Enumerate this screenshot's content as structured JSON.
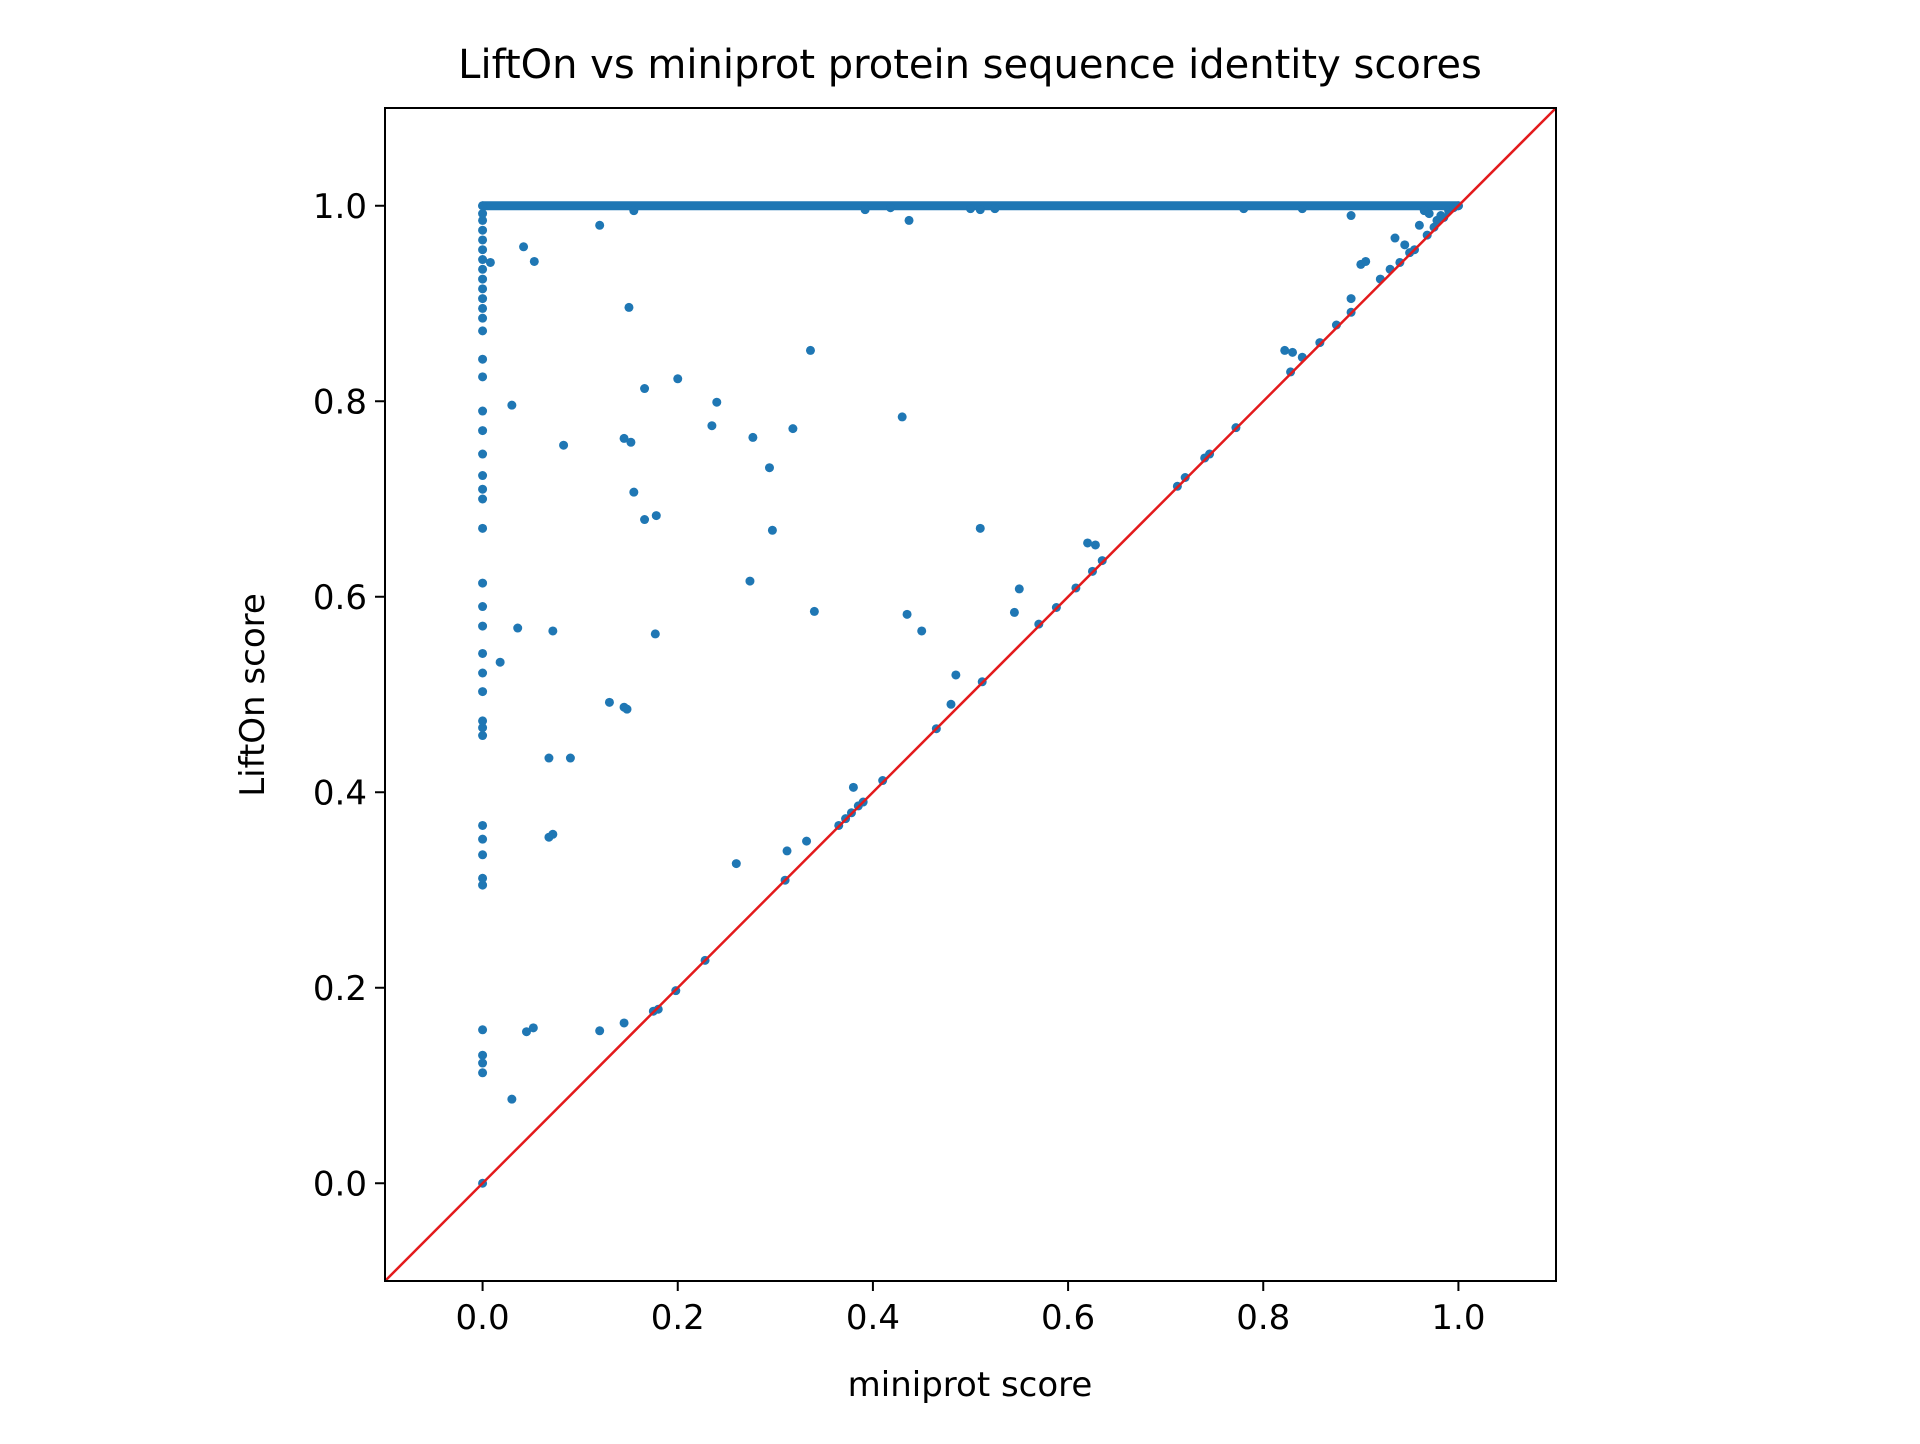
{
  "chart_data": {
    "type": "scatter",
    "title": "LiftOn vs miniprot protein sequence identity scores",
    "xlabel": "miniprot score",
    "ylabel": "LiftOn score",
    "xlim": [
      -0.1,
      1.1
    ],
    "ylim": [
      -0.1,
      1.1
    ],
    "xticks": [
      {
        "value": 0.0,
        "label": "0.0"
      },
      {
        "value": 0.2,
        "label": "0.2"
      },
      {
        "value": 0.4,
        "label": "0.4"
      },
      {
        "value": 0.6,
        "label": "0.6"
      },
      {
        "value": 0.8,
        "label": "0.8"
      },
      {
        "value": 1.0,
        "label": "1.0"
      }
    ],
    "yticks": [
      {
        "value": 0.0,
        "label": "0.0"
      },
      {
        "value": 0.2,
        "label": "0.2"
      },
      {
        "value": 0.4,
        "label": "0.4"
      },
      {
        "value": 0.6,
        "label": "0.6"
      },
      {
        "value": 0.8,
        "label": "0.8"
      },
      {
        "value": 1.0,
        "label": "1.0"
      }
    ],
    "grid": false,
    "legend": "none",
    "colors": {
      "points": "#1f77b4",
      "reference_line": "#e31a1c",
      "axes": "#000000"
    },
    "reference_line": {
      "label": "",
      "x": [
        -0.1,
        1.1
      ],
      "y": [
        -0.1,
        1.1
      ]
    },
    "series": [
      {
        "name": "",
        "points": [
          [
            0.0,
            0.0
          ],
          [
            0.0,
            0.113
          ],
          [
            0.0,
            0.123
          ],
          [
            0.0,
            0.131
          ],
          [
            0.0,
            0.157
          ],
          [
            0.0,
            0.305
          ],
          [
            0.0,
            0.312
          ],
          [
            0.0,
            0.336
          ],
          [
            0.0,
            0.352
          ],
          [
            0.0,
            0.366
          ],
          [
            0.0,
            0.458
          ],
          [
            0.0,
            0.466
          ],
          [
            0.0,
            0.473
          ],
          [
            0.0,
            0.503
          ],
          [
            0.0,
            0.522
          ],
          [
            0.0,
            0.542
          ],
          [
            0.0,
            0.57
          ],
          [
            0.0,
            0.59
          ],
          [
            0.0,
            0.614
          ],
          [
            0.0,
            0.67
          ],
          [
            0.0,
            0.7
          ],
          [
            0.0,
            0.71
          ],
          [
            0.0,
            0.724
          ],
          [
            0.0,
            0.746
          ],
          [
            0.0,
            0.77
          ],
          [
            0.0,
            0.79
          ],
          [
            0.0,
            0.825
          ],
          [
            0.0,
            0.843
          ],
          [
            0.0,
            0.872
          ],
          [
            0.0,
            0.885
          ],
          [
            0.0,
            0.895
          ],
          [
            0.0,
            0.905
          ],
          [
            0.0,
            0.915
          ],
          [
            0.0,
            0.925
          ],
          [
            0.0,
            0.935
          ],
          [
            0.0,
            0.945
          ],
          [
            0.0,
            0.955
          ],
          [
            0.0,
            0.965
          ],
          [
            0.0,
            0.975
          ],
          [
            0.0,
            0.985
          ],
          [
            0.0,
            0.992
          ],
          [
            0.0,
            1.0
          ],
          [
            0.008,
            0.942
          ],
          [
            0.042,
            0.958
          ],
          [
            0.053,
            0.943
          ],
          [
            0.12,
            0.98
          ],
          [
            0.155,
            0.995
          ],
          [
            0.392,
            0.996
          ],
          [
            0.418,
            0.998
          ],
          [
            0.437,
            0.985
          ],
          [
            0.5,
            0.997
          ],
          [
            0.51,
            0.996
          ],
          [
            0.525,
            0.997
          ],
          [
            0.78,
            0.997
          ],
          [
            0.84,
            0.997
          ],
          [
            0.89,
            0.99
          ],
          [
            0.15,
            0.896
          ],
          [
            0.336,
            0.852
          ],
          [
            0.2,
            0.823
          ],
          [
            0.166,
            0.813
          ],
          [
            0.03,
            0.796
          ],
          [
            0.24,
            0.799
          ],
          [
            0.43,
            0.784
          ],
          [
            0.235,
            0.775
          ],
          [
            0.318,
            0.772
          ],
          [
            0.277,
            0.763
          ],
          [
            0.145,
            0.762
          ],
          [
            0.152,
            0.758
          ],
          [
            0.083,
            0.755
          ],
          [
            0.294,
            0.732
          ],
          [
            0.155,
            0.707
          ],
          [
            0.178,
            0.683
          ],
          [
            0.166,
            0.679
          ],
          [
            0.297,
            0.668
          ],
          [
            0.51,
            0.67
          ],
          [
            0.274,
            0.616
          ],
          [
            0.34,
            0.585
          ],
          [
            0.435,
            0.582
          ],
          [
            0.036,
            0.568
          ],
          [
            0.072,
            0.565
          ],
          [
            0.177,
            0.562
          ],
          [
            0.45,
            0.565
          ],
          [
            0.018,
            0.533
          ],
          [
            0.13,
            0.492
          ],
          [
            0.145,
            0.487
          ],
          [
            0.148,
            0.485
          ],
          [
            0.068,
            0.435
          ],
          [
            0.09,
            0.435
          ],
          [
            0.068,
            0.354
          ],
          [
            0.072,
            0.357
          ],
          [
            0.26,
            0.327
          ],
          [
            0.312,
            0.34
          ],
          [
            0.332,
            0.35
          ],
          [
            0.045,
            0.155
          ],
          [
            0.052,
            0.159
          ],
          [
            0.12,
            0.156
          ],
          [
            0.145,
            0.164
          ],
          [
            0.03,
            0.086
          ],
          [
            0.485,
            0.52
          ],
          [
            0.55,
            0.608
          ],
          [
            0.545,
            0.584
          ],
          [
            0.62,
            0.655
          ],
          [
            0.628,
            0.653
          ],
          [
            0.38,
            0.405
          ],
          [
            0.48,
            0.49
          ],
          [
            0.175,
            0.176
          ],
          [
            0.18,
            0.178
          ],
          [
            0.198,
            0.197
          ],
          [
            0.228,
            0.228
          ],
          [
            0.31,
            0.31
          ],
          [
            0.365,
            0.366
          ],
          [
            0.372,
            0.373
          ],
          [
            0.378,
            0.379
          ],
          [
            0.385,
            0.386
          ],
          [
            0.39,
            0.39
          ],
          [
            0.41,
            0.412
          ],
          [
            0.465,
            0.465
          ],
          [
            0.512,
            0.513
          ],
          [
            0.57,
            0.572
          ],
          [
            0.588,
            0.589
          ],
          [
            0.608,
            0.609
          ],
          [
            0.625,
            0.626
          ],
          [
            0.635,
            0.637
          ],
          [
            0.712,
            0.713
          ],
          [
            0.72,
            0.722
          ],
          [
            0.74,
            0.742
          ],
          [
            0.745,
            0.746
          ],
          [
            0.772,
            0.773
          ],
          [
            0.822,
            0.852
          ],
          [
            0.83,
            0.85
          ],
          [
            0.828,
            0.83
          ],
          [
            0.84,
            0.845
          ],
          [
            0.858,
            0.86
          ],
          [
            0.875,
            0.878
          ],
          [
            0.89,
            0.891
          ],
          [
            0.89,
            0.905
          ],
          [
            0.9,
            0.94
          ],
          [
            0.905,
            0.943
          ],
          [
            0.92,
            0.925
          ],
          [
            0.93,
            0.935
          ],
          [
            0.935,
            0.967
          ],
          [
            0.94,
            0.942
          ],
          [
            0.945,
            0.96
          ],
          [
            0.95,
            0.952
          ],
          [
            0.955,
            0.955
          ],
          [
            0.96,
            0.98
          ],
          [
            0.965,
            0.995
          ],
          [
            0.968,
            0.97
          ],
          [
            0.97,
            0.992
          ],
          [
            0.975,
            0.978
          ],
          [
            0.978,
            0.985
          ],
          [
            0.982,
            0.99
          ],
          [
            0.985,
            0.988
          ],
          [
            0.99,
            0.995
          ],
          [
            0.995,
            0.998
          ],
          [
            1.0,
            1.0
          ]
        ]
      }
    ],
    "bands": [
      {
        "description": "dense run of points along LiftOn score 1.0",
        "y": 1.0,
        "x_range": [
          0.0,
          1.0
        ]
      }
    ]
  }
}
